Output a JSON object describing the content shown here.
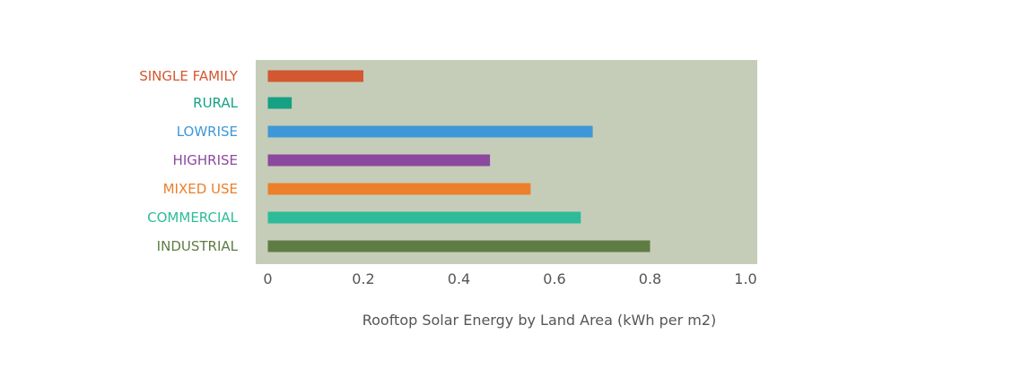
{
  "chart_data": {
    "type": "bar",
    "orientation": "horizontal",
    "title": "",
    "xlabel": "Rooftop Solar Energy by Land Area (kWh per m2)",
    "ylabel": "",
    "xlim": [
      0,
      1.0
    ],
    "xticks": [
      0,
      0.2,
      0.4,
      0.6,
      0.8,
      1.0
    ],
    "xtick_labels": [
      "0",
      "0.2",
      "0.4",
      "0.6",
      "0.8",
      "1.0"
    ],
    "grid": false,
    "background_color": "#c5cdb8",
    "categories": [
      "SINGLE FAMILY",
      "RURAL",
      "LOWRISE",
      "HIGHRISE",
      "MIXED USE",
      "COMMERCIAL",
      "INDUSTRIAL"
    ],
    "values": [
      0.2,
      0.05,
      0.68,
      0.465,
      0.55,
      0.655,
      0.8
    ],
    "colors": [
      "#d35730",
      "#17a184",
      "#3e98d7",
      "#8b4a9e",
      "#ec7f2a",
      "#2dbb99",
      "#5f7c45"
    ]
  }
}
